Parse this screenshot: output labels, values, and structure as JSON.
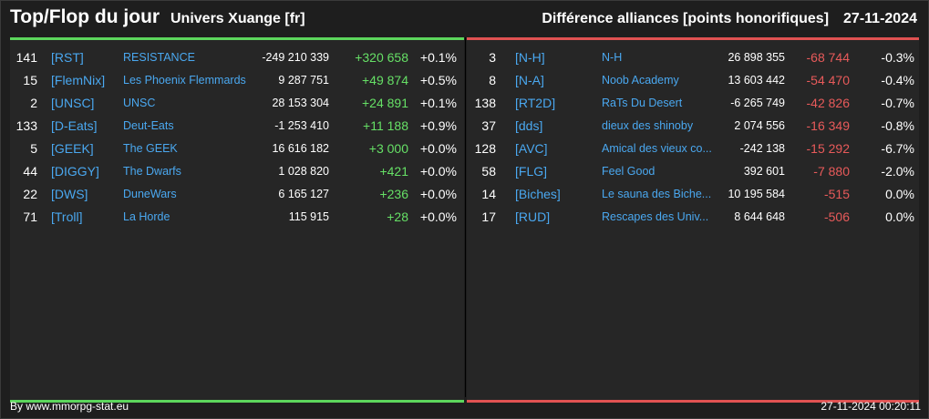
{
  "header": {
    "title": "Top/Flop du jour",
    "subtitle": "Univers Xuange [fr]",
    "right_title": "Différence alliances [points honorifiques]",
    "date": "27-11-2024"
  },
  "colors": {
    "positive": "#66e066",
    "negative": "#e85a5a",
    "tag": "#4aa8f0"
  },
  "top": [
    {
      "rank": "141",
      "tag": "[RST]",
      "name": "RESISTANCE",
      "points": "-249 210 339",
      "diff": "+320 658",
      "pct": "+0.1%"
    },
    {
      "rank": "15",
      "tag": "[FlemNix]",
      "name": "Les Phoenix Flemmards",
      "points": "9 287 751",
      "diff": "+49 874",
      "pct": "+0.5%"
    },
    {
      "rank": "2",
      "tag": "[UNSC]",
      "name": "UNSC",
      "points": "28 153 304",
      "diff": "+24 891",
      "pct": "+0.1%"
    },
    {
      "rank": "133",
      "tag": "[D-Eats]",
      "name": "Deut-Eats",
      "points": "-1 253 410",
      "diff": "+11 188",
      "pct": "+0.9%"
    },
    {
      "rank": "5",
      "tag": "[GEEK]",
      "name": "The GEEK",
      "points": "16 616 182",
      "diff": "+3 000",
      "pct": "+0.0%"
    },
    {
      "rank": "44",
      "tag": "[DIGGY]",
      "name": "The Dwarfs",
      "points": "1 028 820",
      "diff": "+421",
      "pct": "+0.0%"
    },
    {
      "rank": "22",
      "tag": "[DWS]",
      "name": "DuneWars",
      "points": "6 165 127",
      "diff": "+236",
      "pct": "+0.0%"
    },
    {
      "rank": "71",
      "tag": "[Troll]",
      "name": "La Horde",
      "points": "115 915",
      "diff": "+28",
      "pct": "+0.0%"
    }
  ],
  "flop": [
    {
      "rank": "3",
      "tag": "[N-H]",
      "name": "N-H",
      "points": "26 898 355",
      "diff": "-68 744",
      "pct": "-0.3%"
    },
    {
      "rank": "8",
      "tag": "[N-A]",
      "name": "Noob Academy",
      "points": "13 603 442",
      "diff": "-54 470",
      "pct": "-0.4%"
    },
    {
      "rank": "138",
      "tag": "[RT2D]",
      "name": "RaTs Du Desert",
      "points": "-6 265 749",
      "diff": "-42 826",
      "pct": "-0.7%"
    },
    {
      "rank": "37",
      "tag": "[dds]",
      "name": "dieux des shinoby",
      "points": "2 074 556",
      "diff": "-16 349",
      "pct": "-0.8%"
    },
    {
      "rank": "128",
      "tag": "[AVC]",
      "name": "Amical des vieux co...",
      "points": "-242 138",
      "diff": "-15 292",
      "pct": "-6.7%"
    },
    {
      "rank": "58",
      "tag": "[FLG]",
      "name": "Feel Good",
      "points": "392 601",
      "diff": "-7 880",
      "pct": "-2.0%"
    },
    {
      "rank": "14",
      "tag": "[Biches]",
      "name": "Le sauna des Biche...",
      "points": "10 195 584",
      "diff": "-515",
      "pct": "0.0%"
    },
    {
      "rank": "17",
      "tag": "[RUD]",
      "name": "Rescapes des Univ...",
      "points": "8 644 648",
      "diff": "-506",
      "pct": "0.0%"
    }
  ],
  "footer": {
    "credit": "By www.mmorpg-stat.eu",
    "timestamp": "27-11-2024 00:20:11"
  }
}
